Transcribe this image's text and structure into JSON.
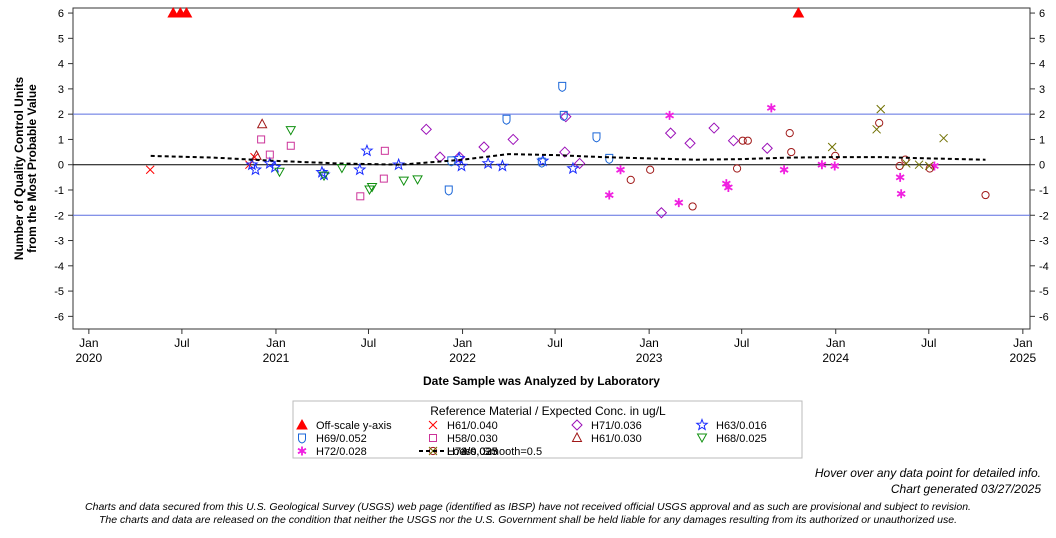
{
  "chart_data": {
    "type": "scatter",
    "ylabel_lines": [
      "Number of Quality Control Units",
      "from the Most Probable Value"
    ],
    "xlabel": "Date Sample was Analyzed by Laboratory",
    "ylim": [
      -6.5,
      6.2
    ],
    "xlim": [
      "2019-12-01",
      "2025-01-15"
    ],
    "yticks": [
      6,
      5,
      4,
      3,
      2,
      1,
      0,
      -1,
      -2,
      -3,
      -4,
      -5,
      -6
    ],
    "xticks": [
      {
        "date": "2020-01-01",
        "line1": "Jan",
        "line2": "2020"
      },
      {
        "date": "2020-07-01",
        "line1": "Jul",
        "line2": ""
      },
      {
        "date": "2021-01-01",
        "line1": "Jan",
        "line2": "2021"
      },
      {
        "date": "2021-07-01",
        "line1": "Jul",
        "line2": ""
      },
      {
        "date": "2022-01-01",
        "line1": "Jan",
        "line2": "2022"
      },
      {
        "date": "2022-07-01",
        "line1": "Jul",
        "line2": ""
      },
      {
        "date": "2023-01-01",
        "line1": "Jan",
        "line2": "2023"
      },
      {
        "date": "2023-07-01",
        "line1": "Jul",
        "line2": ""
      },
      {
        "date": "2024-01-01",
        "line1": "Jan",
        "line2": "2024"
      },
      {
        "date": "2024-07-01",
        "line1": "Jul",
        "line2": ""
      },
      {
        "date": "2025-01-01",
        "line1": "Jan",
        "line2": "2025"
      }
    ],
    "reference_lines": [
      {
        "y": 2,
        "color": "#5b6fe0"
      },
      {
        "y": 0,
        "color": "#000000"
      },
      {
        "y": -2,
        "color": "#5b6fe0"
      }
    ],
    "legend_title": "Reference Material / Expected Conc. in ug/L",
    "legend_placement": "bottom",
    "series": [
      {
        "name": "Off-scale y-axis",
        "marker": "filled-triangle",
        "color": "#ff0000",
        "points": [
          [
            "2020-06-14",
            6
          ],
          [
            "2020-06-28",
            6
          ],
          [
            "2020-07-10",
            6
          ],
          [
            "2023-10-20",
            6
          ]
        ]
      },
      {
        "name": "H61/0.040",
        "marker": "x",
        "color": "#ff0000",
        "points": [
          [
            "2020-04-30",
            -0.2
          ],
          [
            "2020-11-10",
            0.0
          ],
          [
            "2020-11-20",
            0.3
          ]
        ]
      },
      {
        "name": "H71/0.036",
        "marker": "diamond",
        "color": "#9b10b8",
        "points": [
          [
            "2021-10-22",
            1.4
          ],
          [
            "2021-11-18",
            0.3
          ],
          [
            "2021-12-26",
            0.3
          ],
          [
            "2022-02-12",
            0.7
          ],
          [
            "2022-04-10",
            1.0
          ],
          [
            "2022-07-20",
            0.5
          ],
          [
            "2022-08-18",
            0.05
          ],
          [
            "2023-01-25",
            -1.9
          ],
          [
            "2023-02-12",
            1.25
          ],
          [
            "2023-03-22",
            0.85
          ],
          [
            "2023-05-08",
            1.45
          ],
          [
            "2023-06-15",
            0.95
          ],
          [
            "2023-08-20",
            0.65
          ],
          [
            "2022-07-22",
            1.9
          ]
        ]
      },
      {
        "name": "H63/0.016",
        "marker": "star",
        "color": "#1a2cff",
        "points": [
          [
            "2020-11-15",
            0.0
          ],
          [
            "2020-11-22",
            -0.2
          ],
          [
            "2020-12-20",
            0.05
          ],
          [
            "2020-12-30",
            -0.1
          ],
          [
            "2021-04-01",
            -0.3
          ],
          [
            "2021-04-05",
            -0.4
          ],
          [
            "2021-06-14",
            -0.2
          ],
          [
            "2021-06-28",
            0.55
          ],
          [
            "2021-08-29",
            0.0
          ],
          [
            "2021-12-25",
            0.25
          ],
          [
            "2021-12-30",
            -0.05
          ],
          [
            "2022-02-20",
            0.05
          ],
          [
            "2022-03-20",
            -0.05
          ],
          [
            "2022-06-07",
            0.15
          ],
          [
            "2022-08-05",
            -0.15
          ]
        ]
      },
      {
        "name": "H69/0.052",
        "marker": "shield",
        "color": "#1a66d8",
        "points": [
          [
            "2021-12-05",
            -1.0
          ],
          [
            "2021-12-10",
            0.15
          ],
          [
            "2022-03-28",
            1.8
          ],
          [
            "2022-06-05",
            0.1
          ],
          [
            "2022-07-15",
            3.1
          ],
          [
            "2022-07-18",
            1.95
          ],
          [
            "2022-09-20",
            1.1
          ],
          [
            "2022-10-15",
            0.25
          ]
        ]
      },
      {
        "name": "H58/0.030",
        "marker": "square",
        "color": "#cc3399",
        "points": [
          [
            "2020-12-03",
            1.0
          ],
          [
            "2020-12-20",
            0.4
          ],
          [
            "2021-01-30",
            0.75
          ],
          [
            "2021-06-15",
            -1.25
          ],
          [
            "2021-08-02",
            0.55
          ],
          [
            "2021-07-31",
            -0.55
          ]
        ]
      },
      {
        "name": "H61/0.030",
        "marker": "triangle",
        "color": "#a01818",
        "points": [
          [
            "2020-12-05",
            1.6
          ],
          [
            "2020-11-24",
            0.35
          ]
        ]
      },
      {
        "name": "H68/0.025",
        "marker": "inverted-triangle",
        "color": "#109010",
        "points": [
          [
            "2021-01-30",
            1.35
          ],
          [
            "2021-04-05",
            -0.45
          ],
          [
            "2021-01-08",
            -0.3
          ],
          [
            "2021-05-10",
            -0.15
          ],
          [
            "2021-07-03",
            -1.0
          ],
          [
            "2021-09-08",
            -0.65
          ],
          [
            "2021-10-05",
            -0.6
          ],
          [
            "2021-07-08",
            -0.9
          ]
        ]
      },
      {
        "name": "H72/0.028",
        "marker": "asterisk",
        "color": "#f020e0",
        "points": [
          [
            "2022-10-15",
            -1.2
          ],
          [
            "2022-11-06",
            -0.2
          ],
          [
            "2023-02-10",
            1.95
          ],
          [
            "2023-02-28",
            -1.5
          ],
          [
            "2023-06-01",
            -0.75
          ],
          [
            "2023-06-05",
            -0.9
          ],
          [
            "2023-08-28",
            2.25
          ],
          [
            "2023-09-22",
            -0.2
          ],
          [
            "2023-12-05",
            0.0
          ],
          [
            "2024-05-06",
            -0.5
          ],
          [
            "2024-05-08",
            -1.15
          ],
          [
            "2024-07-12",
            -0.05
          ],
          [
            "2023-12-30",
            -0.05
          ]
        ]
      },
      {
        "name": "H73/0.023",
        "marker": "circle",
        "color": "#a01818",
        "points": [
          [
            "2022-11-26",
            -0.6
          ],
          [
            "2023-01-03",
            -0.2
          ],
          [
            "2023-03-27",
            -1.65
          ],
          [
            "2023-06-22",
            -0.15
          ],
          [
            "2023-07-03",
            0.95
          ],
          [
            "2023-07-13",
            0.95
          ],
          [
            "2023-10-03",
            1.25
          ],
          [
            "2023-10-06",
            0.5
          ],
          [
            "2023-12-31",
            0.35
          ],
          [
            "2024-03-26",
            1.65
          ],
          [
            "2024-05-05",
            -0.05
          ],
          [
            "2024-05-16",
            0.2
          ],
          [
            "2024-07-03",
            -0.15
          ],
          [
            "2024-10-20",
            -1.2
          ]
        ]
      },
      {
        "name": "H74/0.035",
        "marker": "x",
        "color": "#707000",
        "points": [
          [
            "2023-12-25",
            0.7
          ],
          [
            "2024-03-21",
            1.4
          ],
          [
            "2024-03-29",
            2.2
          ],
          [
            "2024-05-18",
            0.05
          ],
          [
            "2024-06-12",
            0.0
          ],
          [
            "2024-07-30",
            1.05
          ],
          [
            "2024-07-02",
            -0.05
          ]
        ]
      },
      {
        "name": "Loess, Smooth=0.5",
        "marker": "dashed-line",
        "color": "#000000",
        "points": [
          [
            "2020-05-01",
            0.35
          ],
          [
            "2020-09-01",
            0.28
          ],
          [
            "2021-01-01",
            0.15
          ],
          [
            "2021-05-01",
            0.05
          ],
          [
            "2021-09-01",
            0.0
          ],
          [
            "2022-01-01",
            0.2
          ],
          [
            "2022-04-01",
            0.42
          ],
          [
            "2022-07-01",
            0.38
          ],
          [
            "2022-10-01",
            0.3
          ],
          [
            "2023-01-01",
            0.25
          ],
          [
            "2023-04-01",
            0.2
          ],
          [
            "2023-07-01",
            0.22
          ],
          [
            "2023-10-01",
            0.28
          ],
          [
            "2024-01-01",
            0.3
          ],
          [
            "2024-04-01",
            0.3
          ],
          [
            "2024-07-01",
            0.25
          ],
          [
            "2024-10-20",
            0.2
          ]
        ]
      }
    ]
  },
  "notes": {
    "hover": "Hover over any data point for detailed info.",
    "generated": "Chart generated 03/27/2025",
    "disclaimer1": "Charts and data secured from this U.S. Geological Survey (USGS) web page (identified as IBSP) have not received official USGS approval and as such are provisional and subject to revision.",
    "disclaimer2": "The charts and data are released on the condition that neither the USGS nor the U.S. Government shall be held liable for any damages resulting from its authorized or unauthorized use."
  }
}
